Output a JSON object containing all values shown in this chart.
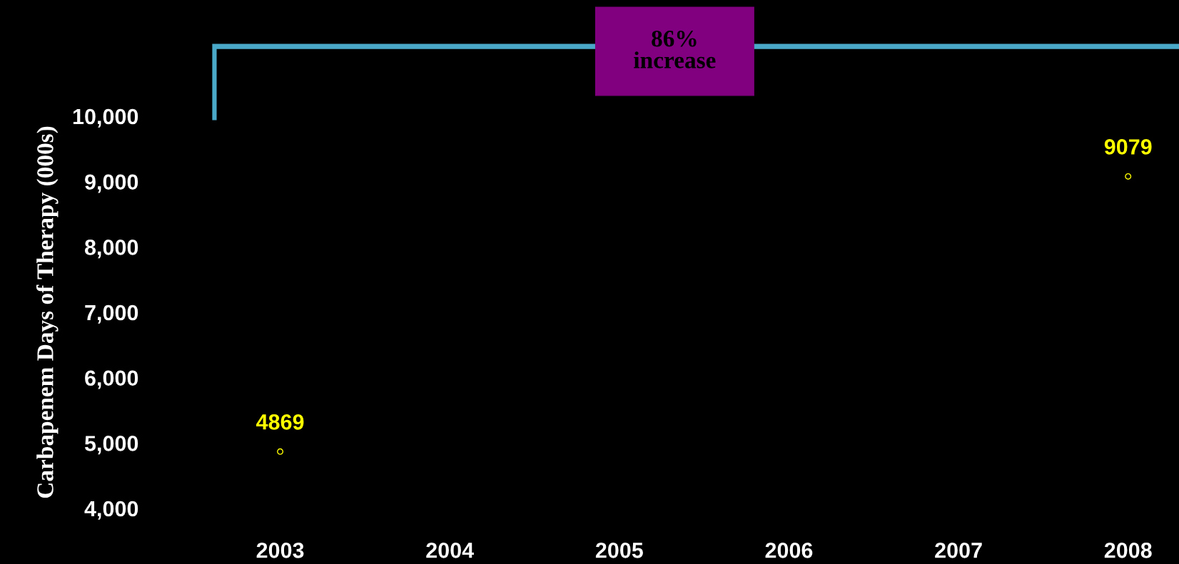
{
  "chart_data": {
    "type": "scatter",
    "ylabel": "Carbapenem Days of Therapy (000s)",
    "categories": [
      "2003",
      "2004",
      "2005",
      "2006",
      "2007",
      "2008"
    ],
    "series": [
      {
        "color": "#000000",
        "values": [
          4869,
          null,
          null,
          null,
          null,
          9079
        ],
        "value_labels": [
          "4869",
          null,
          null,
          null,
          null,
          "9079"
        ]
      }
    ],
    "ylim": [
      4000,
      10000
    ],
    "yticks": [
      {
        "value": 4000,
        "label": "4,000"
      },
      {
        "value": 5000,
        "label": "5,000"
      },
      {
        "value": 6000,
        "label": "6,000"
      },
      {
        "value": 7000,
        "label": "7,000"
      },
      {
        "value": 8000,
        "label": "8,000"
      },
      {
        "value": 9000,
        "label": "9,000"
      },
      {
        "value": 10000,
        "label": "10,000"
      }
    ],
    "annotations": [
      "86%\nincrease"
    ],
    "grid": false,
    "legend": false
  }
}
